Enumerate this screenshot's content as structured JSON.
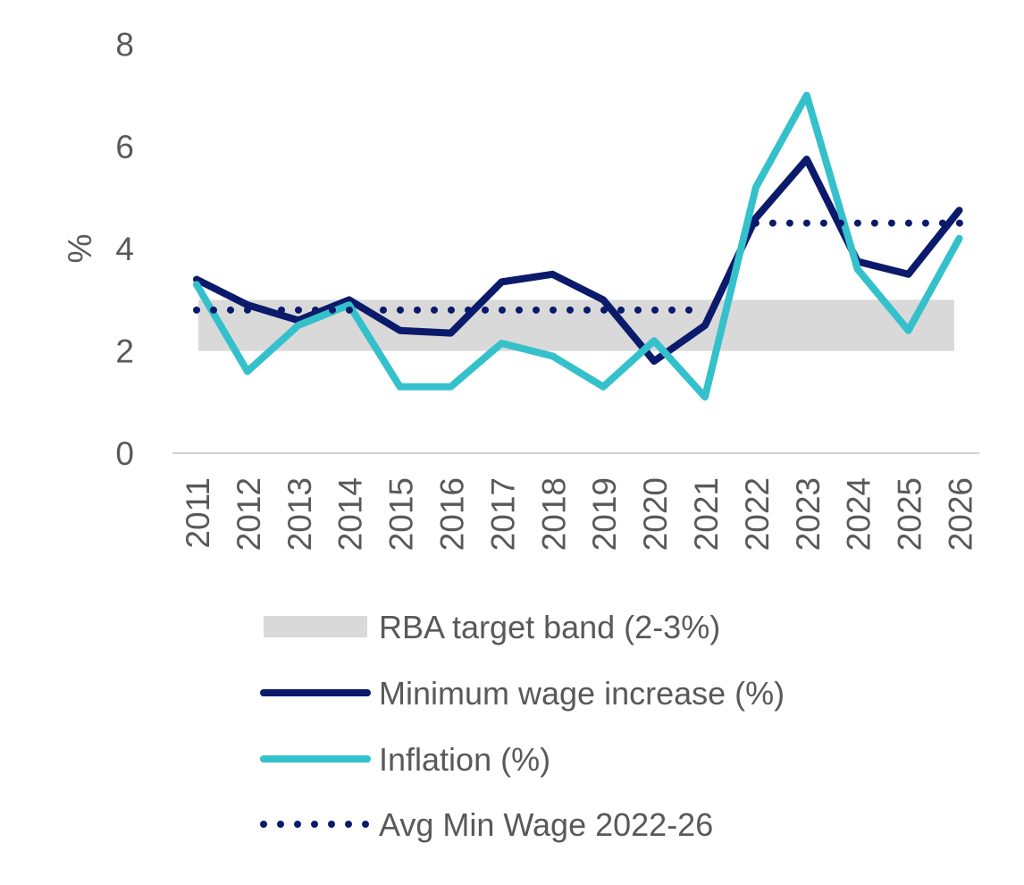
{
  "chart_data": {
    "type": "line",
    "title": "",
    "xlabel": "",
    "ylabel": "%",
    "ylim": [
      0,
      8
    ],
    "yticks": [
      0,
      2,
      4,
      6,
      8
    ],
    "categories": [
      "2011",
      "2012",
      "2013",
      "2014",
      "2015",
      "2016",
      "2017",
      "2018",
      "2019",
      "2020",
      "2021",
      "2022",
      "2023",
      "2024",
      "2025",
      "2026"
    ],
    "band": {
      "name": "RBA target band (2-3%)",
      "low": 2,
      "high": 3,
      "color": "#d9d9d9"
    },
    "series": [
      {
        "name": "Minimum wage increase (%)",
        "color": "#0b1a6b",
        "style": "solid",
        "values": [
          3.4,
          2.9,
          2.6,
          3.0,
          2.4,
          2.35,
          3.35,
          3.5,
          3.0,
          1.8,
          2.5,
          4.6,
          5.75,
          3.75,
          3.5,
          4.75
        ]
      },
      {
        "name": "Inflation (%)",
        "color": "#34c1cc",
        "style": "solid",
        "values": [
          3.3,
          1.6,
          2.5,
          2.9,
          1.3,
          1.3,
          2.15,
          1.9,
          1.3,
          2.2,
          1.1,
          5.2,
          7.0,
          3.6,
          2.4,
          4.2
        ]
      },
      {
        "name": "Avg Min Wage 2022-26",
        "color": "#0b1a6b",
        "style": "dotted",
        "segments": [
          {
            "from": "2011",
            "to": "2021",
            "value": 2.8
          },
          {
            "from": "2022",
            "to": "2026",
            "value": 4.5
          }
        ]
      }
    ],
    "legend": "bottom",
    "grid": false
  }
}
